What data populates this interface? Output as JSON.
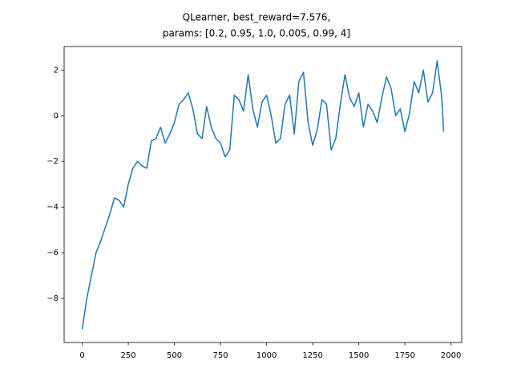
{
  "chart_data": {
    "type": "line",
    "title": [
      "QLearner, best_reward=7.576,",
      "params: [0.2, 0.95, 1.0, 0.005, 0.99, 4]"
    ],
    "x": [
      0,
      25,
      50,
      75,
      100,
      125,
      150,
      175,
      200,
      225,
      250,
      275,
      300,
      325,
      350,
      375,
      400,
      425,
      450,
      475,
      500,
      525,
      550,
      575,
      600,
      625,
      650,
      675,
      700,
      725,
      750,
      775,
      800,
      825,
      850,
      875,
      900,
      925,
      950,
      975,
      1000,
      1025,
      1050,
      1075,
      1100,
      1125,
      1150,
      1175,
      1200,
      1225,
      1250,
      1275,
      1300,
      1325,
      1350,
      1375,
      1400,
      1425,
      1450,
      1475,
      1500,
      1525,
      1550,
      1575,
      1600,
      1625,
      1650,
      1675,
      1700,
      1725,
      1750,
      1775,
      1800,
      1825,
      1850,
      1875,
      1900,
      1925,
      1950,
      1960
    ],
    "series": [
      {
        "color": "#1f77b4",
        "values": [
          -9.35,
          -8.0,
          -7.0,
          -6.0,
          -5.5,
          -4.9,
          -4.3,
          -3.6,
          -3.7,
          -4.0,
          -3.0,
          -2.3,
          -2.0,
          -2.2,
          -2.3,
          -1.1,
          -1.0,
          -0.5,
          -1.2,
          -0.8,
          -0.3,
          0.5,
          0.7,
          1.0,
          0.3,
          -0.8,
          -1.0,
          0.4,
          -0.5,
          -1.0,
          -1.2,
          -1.8,
          -1.5,
          0.9,
          0.7,
          0.2,
          1.8,
          0.3,
          -0.5,
          0.6,
          0.9,
          0.0,
          -1.2,
          -1.0,
          0.5,
          0.9,
          -0.8,
          1.5,
          1.9,
          -0.3,
          -1.3,
          -0.6,
          0.7,
          0.5,
          -1.5,
          -1.0,
          0.5,
          1.8,
          0.8,
          0.4,
          1.0,
          -0.5,
          0.5,
          0.2,
          -0.3,
          0.8,
          1.7,
          1.2,
          0.0,
          0.3,
          -0.7,
          0.1,
          1.5,
          1.0,
          2.0,
          0.6,
          1.0,
          2.4,
          0.8,
          -0.7
        ]
      }
    ],
    "xlim": [
      -98,
      2058
    ],
    "ylim": [
      -9.93,
      3.03
    ],
    "xticks": [
      0,
      250,
      500,
      750,
      1000,
      1250,
      1500,
      1750,
      2000
    ],
    "yticks": [
      {
        "value": -8,
        "label": "−8"
      },
      {
        "value": -6,
        "label": "−6"
      },
      {
        "value": -4,
        "label": "−4"
      },
      {
        "value": -2,
        "label": "−2"
      },
      0,
      2
    ]
  }
}
